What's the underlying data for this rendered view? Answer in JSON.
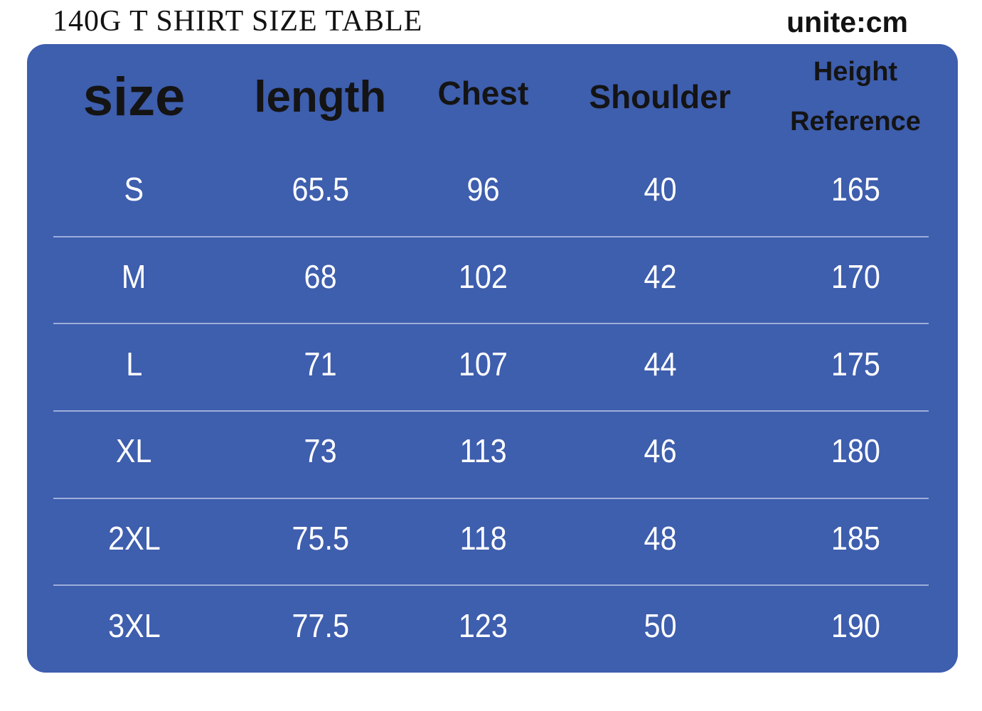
{
  "page": {
    "title": "140G T SHIRT SIZE TABLE",
    "unit_label": "unite:cm"
  },
  "colors": {
    "table_bg": "#3E5EAE",
    "title_text": "#121212",
    "header_text": "#141414",
    "cell_text": "#FFFFFF"
  },
  "table": {
    "headers": [
      {
        "label": "size"
      },
      {
        "label": "length"
      },
      {
        "label": "Chest"
      },
      {
        "label": "Shoulder"
      },
      {
        "label": "Height Reference",
        "lines": [
          "Height",
          "Reference"
        ]
      }
    ],
    "rows": [
      {
        "cells": [
          "S",
          "65.5",
          "96",
          "40",
          "165"
        ]
      },
      {
        "cells": [
          "M",
          "68",
          "102",
          "42",
          "170"
        ]
      },
      {
        "cells": [
          "L",
          "71",
          "107",
          "44",
          "175"
        ]
      },
      {
        "cells": [
          "XL",
          "73",
          "113",
          "46",
          "180"
        ]
      },
      {
        "cells": [
          "2XL",
          "75.5",
          "118",
          "48",
          "185"
        ]
      },
      {
        "cells": [
          "3XL",
          "77.5",
          "123",
          "50",
          "190"
        ]
      }
    ]
  },
  "chart_data": {
    "type": "table",
    "title": "140G T SHIRT SIZE TABLE",
    "unit": "cm",
    "columns": [
      "size",
      "length",
      "Chest",
      "Shoulder",
      "Height Reference"
    ],
    "rows": [
      [
        "S",
        65.5,
        96,
        40,
        165
      ],
      [
        "M",
        68,
        102,
        42,
        170
      ],
      [
        "L",
        71,
        107,
        44,
        175
      ],
      [
        "XL",
        73,
        113,
        46,
        180
      ],
      [
        "2XL",
        75.5,
        118,
        48,
        185
      ],
      [
        "3XL",
        77.5,
        123,
        50,
        190
      ]
    ]
  }
}
